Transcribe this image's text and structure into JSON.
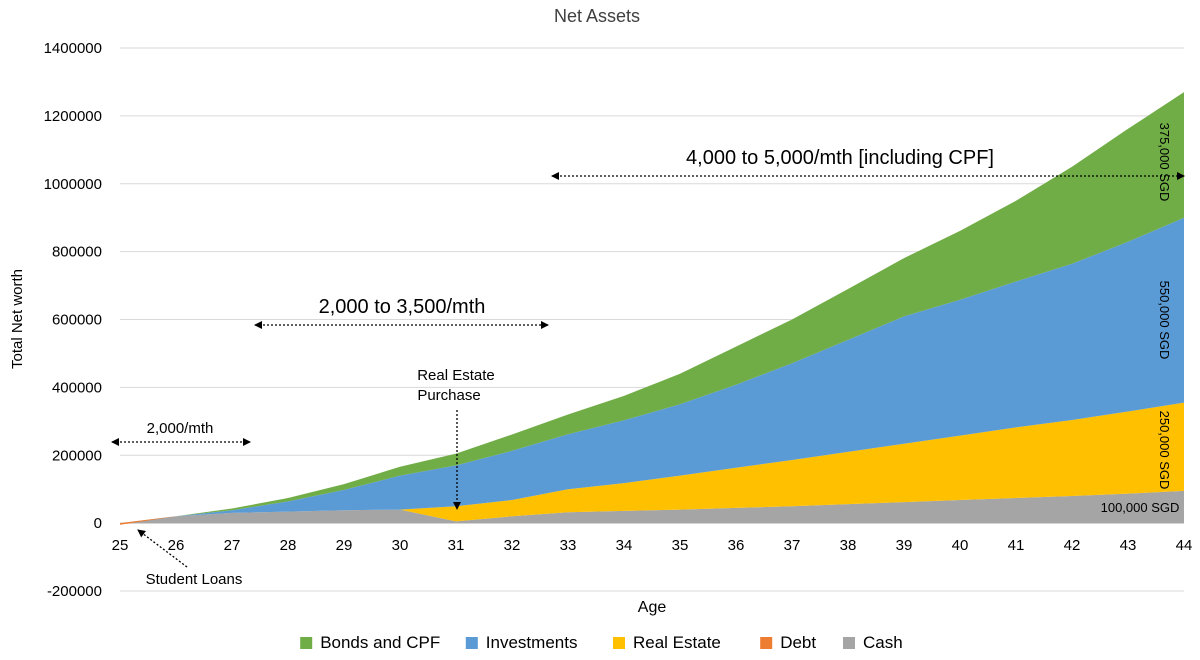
{
  "chart_data": {
    "type": "area",
    "stacked": true,
    "title": "Net Assets",
    "xlabel": "Age",
    "ylabel": "Total Net worth",
    "ylim": [
      -200000,
      1400000
    ],
    "yticks": [
      "-200000",
      "0",
      "200000",
      "400000",
      "600000",
      "800000",
      "1000000",
      "1200000",
      "1400000"
    ],
    "x": [
      25,
      26,
      27,
      28,
      29,
      30,
      31,
      32,
      33,
      34,
      35,
      36,
      37,
      38,
      39,
      40,
      41,
      42,
      43,
      44
    ],
    "grid": true,
    "legend_position": "bottom",
    "series": [
      {
        "name": "Cash",
        "color": "#A5A5A5",
        "values": [
          0,
          20000,
          30000,
          34000,
          38000,
          40000,
          5000,
          20000,
          32000,
          36000,
          40000,
          45000,
          50000,
          56000,
          62000,
          68000,
          74000,
          80000,
          87000,
          95000
        ]
      },
      {
        "name": "Debt",
        "color": "#ED7D31",
        "values": [
          -5000,
          0,
          0,
          0,
          0,
          0,
          0,
          0,
          0,
          0,
          0,
          0,
          0,
          0,
          0,
          0,
          0,
          0,
          0,
          0
        ]
      },
      {
        "name": "Real Estate",
        "color": "#FFC000",
        "values": [
          0,
          0,
          0,
          0,
          0,
          0,
          45000,
          48000,
          68000,
          82000,
          100000,
          118000,
          136000,
          154000,
          172000,
          190000,
          208000,
          224000,
          242000,
          260000
        ]
      },
      {
        "name": "Investments",
        "color": "#5B9BD5",
        "values": [
          0,
          0,
          8000,
          30000,
          60000,
          100000,
          120000,
          145000,
          162000,
          185000,
          210000,
          245000,
          285000,
          330000,
          375000,
          400000,
          430000,
          460000,
          500000,
          545000
        ]
      },
      {
        "name": "Bonds and CPF",
        "color": "#70AD47",
        "values": [
          0,
          0,
          5000,
          10000,
          17000,
          26000,
          35000,
          48000,
          58000,
          72000,
          90000,
          112000,
          129000,
          150000,
          172000,
          203000,
          238000,
          286000,
          333000,
          370000
        ]
      }
    ],
    "legend_order": [
      "Bonds and CPF",
      "Investments",
      "Real Estate",
      "Debt",
      "Cash"
    ],
    "annotations": {
      "band_1": "2,000/mth",
      "band_2": "2,000 to 3,500/mth",
      "band_3": "4,000 to 5,000/mth [including CPF]",
      "real_estate_line1": "Real Estate",
      "real_estate_line2": "Purchase",
      "student_loans": "Student Loans",
      "cash_end": "100,000 SGD",
      "real_estate_end": "250,000 SGD",
      "investments_end": "550,000 SGD",
      "bonds_end": "375,000 SGD"
    }
  }
}
